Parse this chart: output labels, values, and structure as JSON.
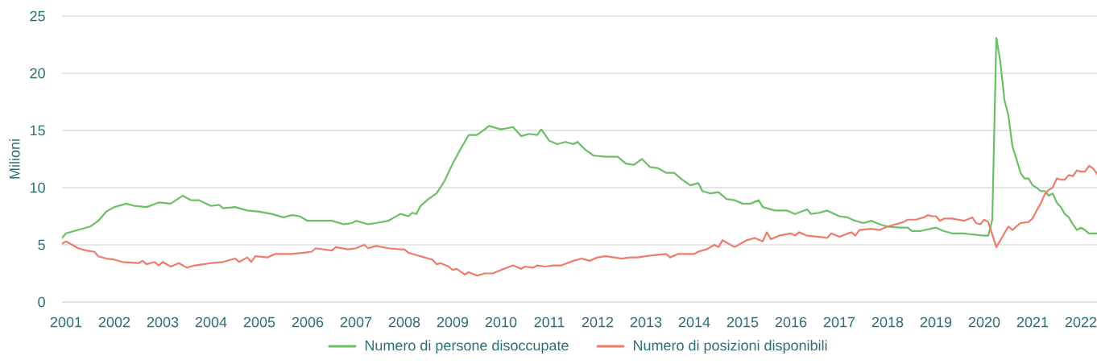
{
  "chart_data": {
    "type": "line",
    "ylabel": "Milioni",
    "xlim": [
      "2000-12",
      "2022-05"
    ],
    "ylim": [
      0,
      25
    ],
    "xticks": [
      "2001",
      "2002",
      "2003",
      "2004",
      "2005",
      "2006",
      "2007",
      "2008",
      "2009",
      "2010",
      "2011",
      "2012",
      "2013",
      "2014",
      "2015",
      "2016",
      "2017",
      "2018",
      "2019",
      "2020",
      "2021",
      "2022"
    ],
    "yticks": [
      0,
      5,
      10,
      15,
      20,
      25
    ],
    "grid": "y",
    "legend": "bottom",
    "series": [
      {
        "name": "Numero di persone disoccupate",
        "color": "#6cbf66",
        "x": [
          "2000-12",
          "2001-01",
          "2001-04",
          "2001-07",
          "2001-09",
          "2001-11",
          "2002-01",
          "2002-04",
          "2002-06",
          "2002-09",
          "2002-12",
          "2003-03",
          "2003-06",
          "2003-08",
          "2003-10",
          "2004-01",
          "2004-03",
          "2004-04",
          "2004-07",
          "2004-10",
          "2005-01",
          "2005-04",
          "2005-07",
          "2005-09",
          "2005-11",
          "2006-01",
          "2006-04",
          "2006-07",
          "2006-10",
          "2006-12",
          "2007-01",
          "2007-04",
          "2007-06",
          "2007-09",
          "2007-12",
          "2008-02",
          "2008-03",
          "2008-04",
          "2008-05",
          "2008-07",
          "2008-09",
          "2008-11",
          "2009-01",
          "2009-03",
          "2009-05",
          "2009-07",
          "2009-09",
          "2009-10",
          "2010-01",
          "2010-04",
          "2010-06",
          "2010-08",
          "2010-10",
          "2010-11",
          "2011-01",
          "2011-03",
          "2011-05",
          "2011-07",
          "2011-08",
          "2011-10",
          "2011-12",
          "2012-03",
          "2012-06",
          "2012-08",
          "2012-10",
          "2012-12",
          "2013-02",
          "2013-04",
          "2013-06",
          "2013-08",
          "2013-10",
          "2013-12",
          "2014-02",
          "2014-03",
          "2014-05",
          "2014-07",
          "2014-09",
          "2014-11",
          "2015-01",
          "2015-03",
          "2015-05",
          "2015-06",
          "2015-09",
          "2015-12",
          "2016-02",
          "2016-05",
          "2016-06",
          "2016-08",
          "2016-10",
          "2017-01",
          "2017-03",
          "2017-05",
          "2017-07",
          "2017-09",
          "2017-11",
          "2018-01",
          "2018-04",
          "2018-06",
          "2018-07",
          "2018-09",
          "2019-01",
          "2019-03",
          "2019-05",
          "2019-08",
          "2019-10",
          "2020-01",
          "2020-02",
          "2020-03",
          "2020-04",
          "2020-05",
          "2020-06",
          "2020-07",
          "2020-08",
          "2020-09",
          "2020-10",
          "2020-11",
          "2020-12",
          "2021-01",
          "2021-02",
          "2021-03",
          "2021-04",
          "2021-05",
          "2021-06",
          "2021-07",
          "2021-08",
          "2021-09",
          "2021-10",
          "2021-11",
          "2021-12",
          "2022-01",
          "2022-02",
          "2022-03",
          "2022-04",
          "2022-05"
        ],
        "values": [
          5.6,
          6.0,
          6.3,
          6.6,
          7.1,
          7.9,
          8.3,
          8.6,
          8.4,
          8.3,
          8.7,
          8.6,
          9.3,
          8.9,
          8.9,
          8.4,
          8.5,
          8.2,
          8.3,
          8.0,
          7.9,
          7.7,
          7.4,
          7.6,
          7.5,
          7.1,
          7.1,
          7.1,
          6.8,
          6.9,
          7.1,
          6.8,
          6.9,
          7.1,
          7.7,
          7.5,
          7.8,
          7.7,
          8.4,
          9.0,
          9.5,
          10.6,
          12.1,
          13.4,
          14.6,
          14.6,
          15.1,
          15.4,
          15.1,
          15.3,
          14.5,
          14.7,
          14.6,
          15.1,
          14.1,
          13.8,
          14.0,
          13.8,
          14.0,
          13.3,
          12.8,
          12.7,
          12.7,
          12.1,
          12.0,
          12.5,
          11.8,
          11.7,
          11.3,
          11.3,
          10.7,
          10.2,
          10.4,
          9.7,
          9.5,
          9.6,
          9.0,
          8.9,
          8.6,
          8.6,
          8.9,
          8.3,
          8.0,
          8.0,
          7.7,
          8.1,
          7.7,
          7.8,
          8.0,
          7.5,
          7.4,
          7.1,
          6.9,
          7.1,
          6.8,
          6.6,
          6.5,
          6.5,
          6.2,
          6.2,
          6.5,
          6.2,
          6.0,
          6.0,
          5.9,
          5.8,
          5.8,
          7.2,
          23.1,
          21.0,
          17.7,
          16.3,
          13.6,
          12.5,
          11.3,
          10.8,
          10.8,
          10.2,
          10.0,
          9.7,
          9.7,
          9.3,
          9.5,
          8.7,
          8.3,
          7.7,
          7.4,
          6.8,
          6.3,
          6.5,
          6.3,
          6.0,
          6.0,
          6.0
        ]
      },
      {
        "name": "Numero di posizioni disponibili",
        "color": "#ee7b6d",
        "x": [
          "2000-12",
          "2001-01",
          "2001-02",
          "2001-04",
          "2001-06",
          "2001-08",
          "2001-09",
          "2001-11",
          "2002-01",
          "2002-03",
          "2002-07",
          "2002-08",
          "2002-09",
          "2002-11",
          "2002-12",
          "2003-01",
          "2003-03",
          "2003-05",
          "2003-07",
          "2003-09",
          "2003-11",
          "2004-01",
          "2004-04",
          "2004-07",
          "2004-08",
          "2004-10",
          "2004-11",
          "2004-12",
          "2005-03",
          "2005-05",
          "2005-09",
          "2005-12",
          "2006-02",
          "2006-03",
          "2006-07",
          "2006-08",
          "2006-11",
          "2007-01",
          "2007-03",
          "2007-04",
          "2007-06",
          "2007-09",
          "2007-12",
          "2008-01",
          "2008-02",
          "2008-04",
          "2008-06",
          "2008-08",
          "2008-09",
          "2008-10",
          "2008-12",
          "2009-01",
          "2009-02",
          "2009-04",
          "2009-05",
          "2009-07",
          "2009-09",
          "2009-11",
          "2010-01",
          "2010-04",
          "2010-06",
          "2010-07",
          "2010-09",
          "2010-10",
          "2010-12",
          "2011-02",
          "2011-04",
          "2011-07",
          "2011-09",
          "2011-11",
          "2012-01",
          "2012-03",
          "2012-07",
          "2012-09",
          "2012-11",
          "2013-01",
          "2013-03",
          "2013-06",
          "2013-07",
          "2013-09",
          "2014-01",
          "2014-02",
          "2014-04",
          "2014-06",
          "2014-07",
          "2014-08",
          "2014-11",
          "2015-02",
          "2015-04",
          "2015-06",
          "2015-07",
          "2015-08",
          "2015-10",
          "2016-01",
          "2016-02",
          "2016-03",
          "2016-05",
          "2016-08",
          "2016-10",
          "2016-11",
          "2017-01",
          "2017-04",
          "2017-05",
          "2017-06",
          "2017-09",
          "2017-11",
          "2018-01",
          "2018-03",
          "2018-05",
          "2018-06",
          "2018-08",
          "2018-10",
          "2018-11",
          "2018-12",
          "2019-01",
          "2019-02",
          "2019-03",
          "2019-05",
          "2019-08",
          "2019-10",
          "2019-11",
          "2019-12",
          "2020-01",
          "2020-02",
          "2020-03",
          "2020-04",
          "2020-05",
          "2020-06",
          "2020-07",
          "2020-08",
          "2020-09",
          "2020-10",
          "2020-12",
          "2021-01",
          "2021-02",
          "2021-03",
          "2021-04",
          "2021-05",
          "2021-06",
          "2021-07",
          "2021-08",
          "2021-09",
          "2021-10",
          "2021-11",
          "2021-12",
          "2022-01",
          "2022-02",
          "2022-03",
          "2022-04",
          "2022-05"
        ],
        "values": [
          5.1,
          5.3,
          5.1,
          4.7,
          4.5,
          4.4,
          4.0,
          3.8,
          3.7,
          3.5,
          3.4,
          3.6,
          3.3,
          3.5,
          3.2,
          3.5,
          3.1,
          3.4,
          3.0,
          3.2,
          3.3,
          3.4,
          3.5,
          3.8,
          3.5,
          3.9,
          3.5,
          4.0,
          3.9,
          4.2,
          4.2,
          4.3,
          4.4,
          4.7,
          4.5,
          4.8,
          4.6,
          4.7,
          5.0,
          4.7,
          4.9,
          4.7,
          4.6,
          4.6,
          4.3,
          4.1,
          3.9,
          3.7,
          3.3,
          3.4,
          3.1,
          2.8,
          2.9,
          2.4,
          2.6,
          2.3,
          2.5,
          2.5,
          2.8,
          3.2,
          2.9,
          3.1,
          3.0,
          3.2,
          3.1,
          3.2,
          3.2,
          3.6,
          3.8,
          3.6,
          3.9,
          4.0,
          3.8,
          3.9,
          3.9,
          4.0,
          4.1,
          4.2,
          3.9,
          4.2,
          4.2,
          4.4,
          4.6,
          5.0,
          4.8,
          5.4,
          4.8,
          5.4,
          5.6,
          5.3,
          6.1,
          5.5,
          5.8,
          6.0,
          5.8,
          6.1,
          5.8,
          5.7,
          5.6,
          6.0,
          5.7,
          6.1,
          5.8,
          6.3,
          6.4,
          6.3,
          6.6,
          6.8,
          7.0,
          7.2,
          7.2,
          7.4,
          7.6,
          7.5,
          7.5,
          7.1,
          7.3,
          7.3,
          7.1,
          7.4,
          6.9,
          6.8,
          7.2,
          7.0,
          5.9,
          4.8,
          5.4,
          6.0,
          6.6,
          6.3,
          6.6,
          6.9,
          7.0,
          7.3,
          8.0,
          8.6,
          9.4,
          9.8,
          10.0,
          10.8,
          10.7,
          10.7,
          11.1,
          11.0,
          11.5,
          11.4,
          11.4,
          11.9,
          11.7,
          11.2
        ]
      }
    ]
  }
}
